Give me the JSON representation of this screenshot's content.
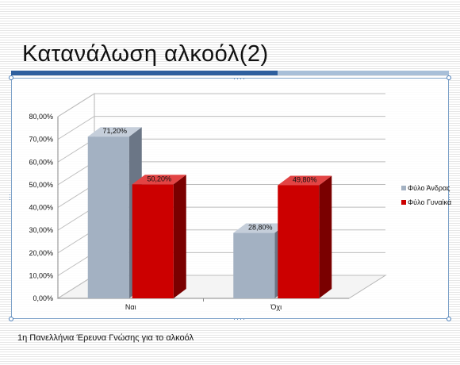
{
  "slide": {
    "title": "Κατανάλωση αλκοόλ(2)",
    "footer": "1η Πανελλήνια Έρευνα Γνώσης για το αλκοόλ"
  },
  "colors": {
    "male": "#a3b1c2",
    "female": "#cc0000",
    "title_bar": "#2e5f9e"
  },
  "chart_data": {
    "type": "bar",
    "title": "",
    "categories": [
      "Ναι",
      "Όχι"
    ],
    "series": [
      {
        "name": "Φύλο Άνδρας",
        "values": [
          71.2,
          28.8
        ],
        "labels": [
          "71,20%",
          "28,80%"
        ]
      },
      {
        "name": "Φύλο Γυναίκα",
        "values": [
          50.2,
          49.8
        ],
        "labels": [
          "50,20%",
          "49,80%"
        ]
      }
    ],
    "ylim": [
      0,
      80
    ],
    "y_ticks": [
      "0,00%",
      "10,00%",
      "20,00%",
      "30,00%",
      "40,00%",
      "50,00%",
      "60,00%",
      "70,00%",
      "80,00%"
    ],
    "grid": true,
    "legend": "right",
    "xlabel": "",
    "ylabel": ""
  }
}
